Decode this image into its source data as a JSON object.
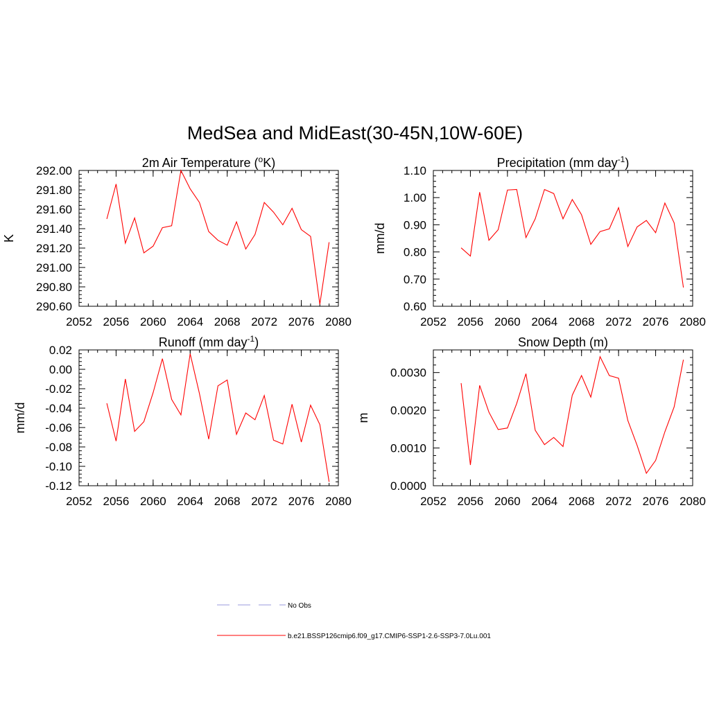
{
  "figure": {
    "title": "MedSea and MidEast(30-45N,10W-60E)"
  },
  "chart_data": [
    {
      "type": "line",
      "title_main": "2m Air Temperature (",
      "title_sup": "o",
      "title_tail": "K)",
      "ylabel": "K",
      "xlabel": "",
      "xlim": [
        2052,
        2080
      ],
      "ylim": [
        290.6,
        292.0
      ],
      "xticks": [
        2052,
        2056,
        2060,
        2064,
        2068,
        2072,
        2076,
        2080
      ],
      "xtick_labels": [
        "2052",
        "2056",
        "2060",
        "2064",
        "2068",
        "2072",
        "2076",
        "2080"
      ],
      "yticks": [
        290.6,
        290.8,
        291.0,
        291.2,
        291.4,
        291.6,
        291.8,
        292.0
      ],
      "ytick_labels": [
        "290.60",
        "290.80",
        "291.00",
        "291.20",
        "291.40",
        "291.60",
        "291.80",
        "292.00"
      ],
      "series": [
        {
          "color": "#ff0000",
          "x": [
            2055,
            2056,
            2057,
            2058,
            2059,
            2060,
            2061,
            2062,
            2063,
            2064,
            2065,
            2066,
            2067,
            2068,
            2069,
            2070,
            2071,
            2072,
            2073,
            2074,
            2075,
            2076,
            2077,
            2078,
            2079
          ],
          "y": [
            291.5,
            291.86,
            291.25,
            291.51,
            291.15,
            291.22,
            291.41,
            291.43,
            292.0,
            291.81,
            291.67,
            291.37,
            291.28,
            291.23,
            291.47,
            291.19,
            291.34,
            291.67,
            291.57,
            291.44,
            291.61,
            291.39,
            291.32,
            290.62,
            291.26
          ]
        }
      ]
    },
    {
      "type": "line",
      "title_main": "Precipitation (mm day",
      "title_sup": "-1",
      "title_tail": ")",
      "ylabel": "mm/d",
      "xlabel": "",
      "xlim": [
        2052,
        2080
      ],
      "ylim": [
        0.6,
        1.1
      ],
      "xticks": [
        2052,
        2056,
        2060,
        2064,
        2068,
        2072,
        2076,
        2080
      ],
      "xtick_labels": [
        "2052",
        "2056",
        "2060",
        "2064",
        "2068",
        "2072",
        "2076",
        "2080"
      ],
      "yticks": [
        0.6,
        0.7,
        0.8,
        0.9,
        1.0,
        1.1
      ],
      "ytick_labels": [
        "0.60",
        "0.70",
        "0.80",
        "0.90",
        "1.00",
        "1.10"
      ],
      "series": [
        {
          "color": "#ff0000",
          "x": [
            2055,
            2056,
            2057,
            2058,
            2059,
            2060,
            2061,
            2062,
            2063,
            2064,
            2065,
            2066,
            2067,
            2068,
            2069,
            2070,
            2071,
            2072,
            2073,
            2074,
            2075,
            2076,
            2077,
            2078,
            2079
          ],
          "y": [
            0.815,
            0.785,
            1.02,
            0.843,
            0.882,
            1.028,
            1.03,
            0.853,
            0.922,
            1.03,
            1.015,
            0.922,
            0.993,
            0.937,
            0.828,
            0.875,
            0.885,
            0.963,
            0.82,
            0.892,
            0.916,
            0.871,
            0.98,
            0.907,
            0.669
          ]
        }
      ]
    },
    {
      "type": "line",
      "title_main": "Runoff (mm day",
      "title_sup": "-1",
      "title_tail": ")",
      "ylabel": "mm/d",
      "xlabel": "",
      "xlim": [
        2052,
        2080
      ],
      "ylim": [
        -0.12,
        0.02
      ],
      "xticks": [
        2052,
        2056,
        2060,
        2064,
        2068,
        2072,
        2076,
        2080
      ],
      "xtick_labels": [
        "2052",
        "2056",
        "2060",
        "2064",
        "2068",
        "2072",
        "2076",
        "2080"
      ],
      "yticks": [
        -0.12,
        -0.1,
        -0.08,
        -0.06,
        -0.04,
        -0.02,
        0.0,
        0.02
      ],
      "ytick_labels": [
        "-0.12",
        "-0.10",
        "-0.08",
        "-0.06",
        "-0.04",
        "-0.02",
        "0.00",
        "0.02"
      ],
      "series": [
        {
          "color": "#ff0000",
          "x": [
            2055,
            2056,
            2057,
            2058,
            2059,
            2060,
            2061,
            2062,
            2063,
            2064,
            2065,
            2066,
            2067,
            2068,
            2069,
            2070,
            2071,
            2072,
            2073,
            2074,
            2075,
            2076,
            2077,
            2078,
            2079
          ],
          "y": [
            -0.035,
            -0.074,
            -0.01,
            -0.064,
            -0.054,
            -0.024,
            0.011,
            -0.031,
            -0.047,
            0.016,
            -0.025,
            -0.072,
            -0.017,
            -0.011,
            -0.067,
            -0.045,
            -0.052,
            -0.027,
            -0.073,
            -0.077,
            -0.036,
            -0.075,
            -0.037,
            -0.057,
            -0.116
          ]
        }
      ]
    },
    {
      "type": "line",
      "title_main": "Snow Depth (m)",
      "title_sup": "",
      "title_tail": "",
      "ylabel": "m",
      "xlabel": "",
      "xlim": [
        2052,
        2080
      ],
      "ylim": [
        0.0,
        0.0036
      ],
      "xticks": [
        2052,
        2056,
        2060,
        2064,
        2068,
        2072,
        2076,
        2080
      ],
      "xtick_labels": [
        "2052",
        "2056",
        "2060",
        "2064",
        "2068",
        "2072",
        "2076",
        "2080"
      ],
      "yticks": [
        0.0,
        0.001,
        0.002,
        0.003
      ],
      "ytick_labels": [
        "0.0000",
        "0.0010",
        "0.0020",
        "0.0030"
      ],
      "series": [
        {
          "color": "#ff0000",
          "x": [
            2055,
            2056,
            2057,
            2058,
            2059,
            2060,
            2061,
            2062,
            2063,
            2064,
            2065,
            2066,
            2067,
            2068,
            2069,
            2070,
            2071,
            2072,
            2073,
            2074,
            2075,
            2076,
            2077,
            2078,
            2079
          ],
          "y": [
            0.00272,
            0.00055,
            0.00266,
            0.00195,
            0.00149,
            0.00153,
            0.00218,
            0.00297,
            0.00147,
            0.00109,
            0.00128,
            0.00104,
            0.0024,
            0.00292,
            0.00235,
            0.00342,
            0.00292,
            0.00285,
            0.00173,
            0.00107,
            0.00033,
            0.00067,
            0.00143,
            0.00209,
            0.00334
          ]
        }
      ]
    }
  ],
  "legend": {
    "items": [
      {
        "label": "No Obs",
        "color": "#9999dd",
        "style": "dashed"
      },
      {
        "label": "b.e21.BSSP126cmip6.f09_g17.CMIP6-SSP1-2.6-SSP3-7.0Lu.001",
        "color": "#ff0000",
        "style": "solid"
      }
    ]
  }
}
